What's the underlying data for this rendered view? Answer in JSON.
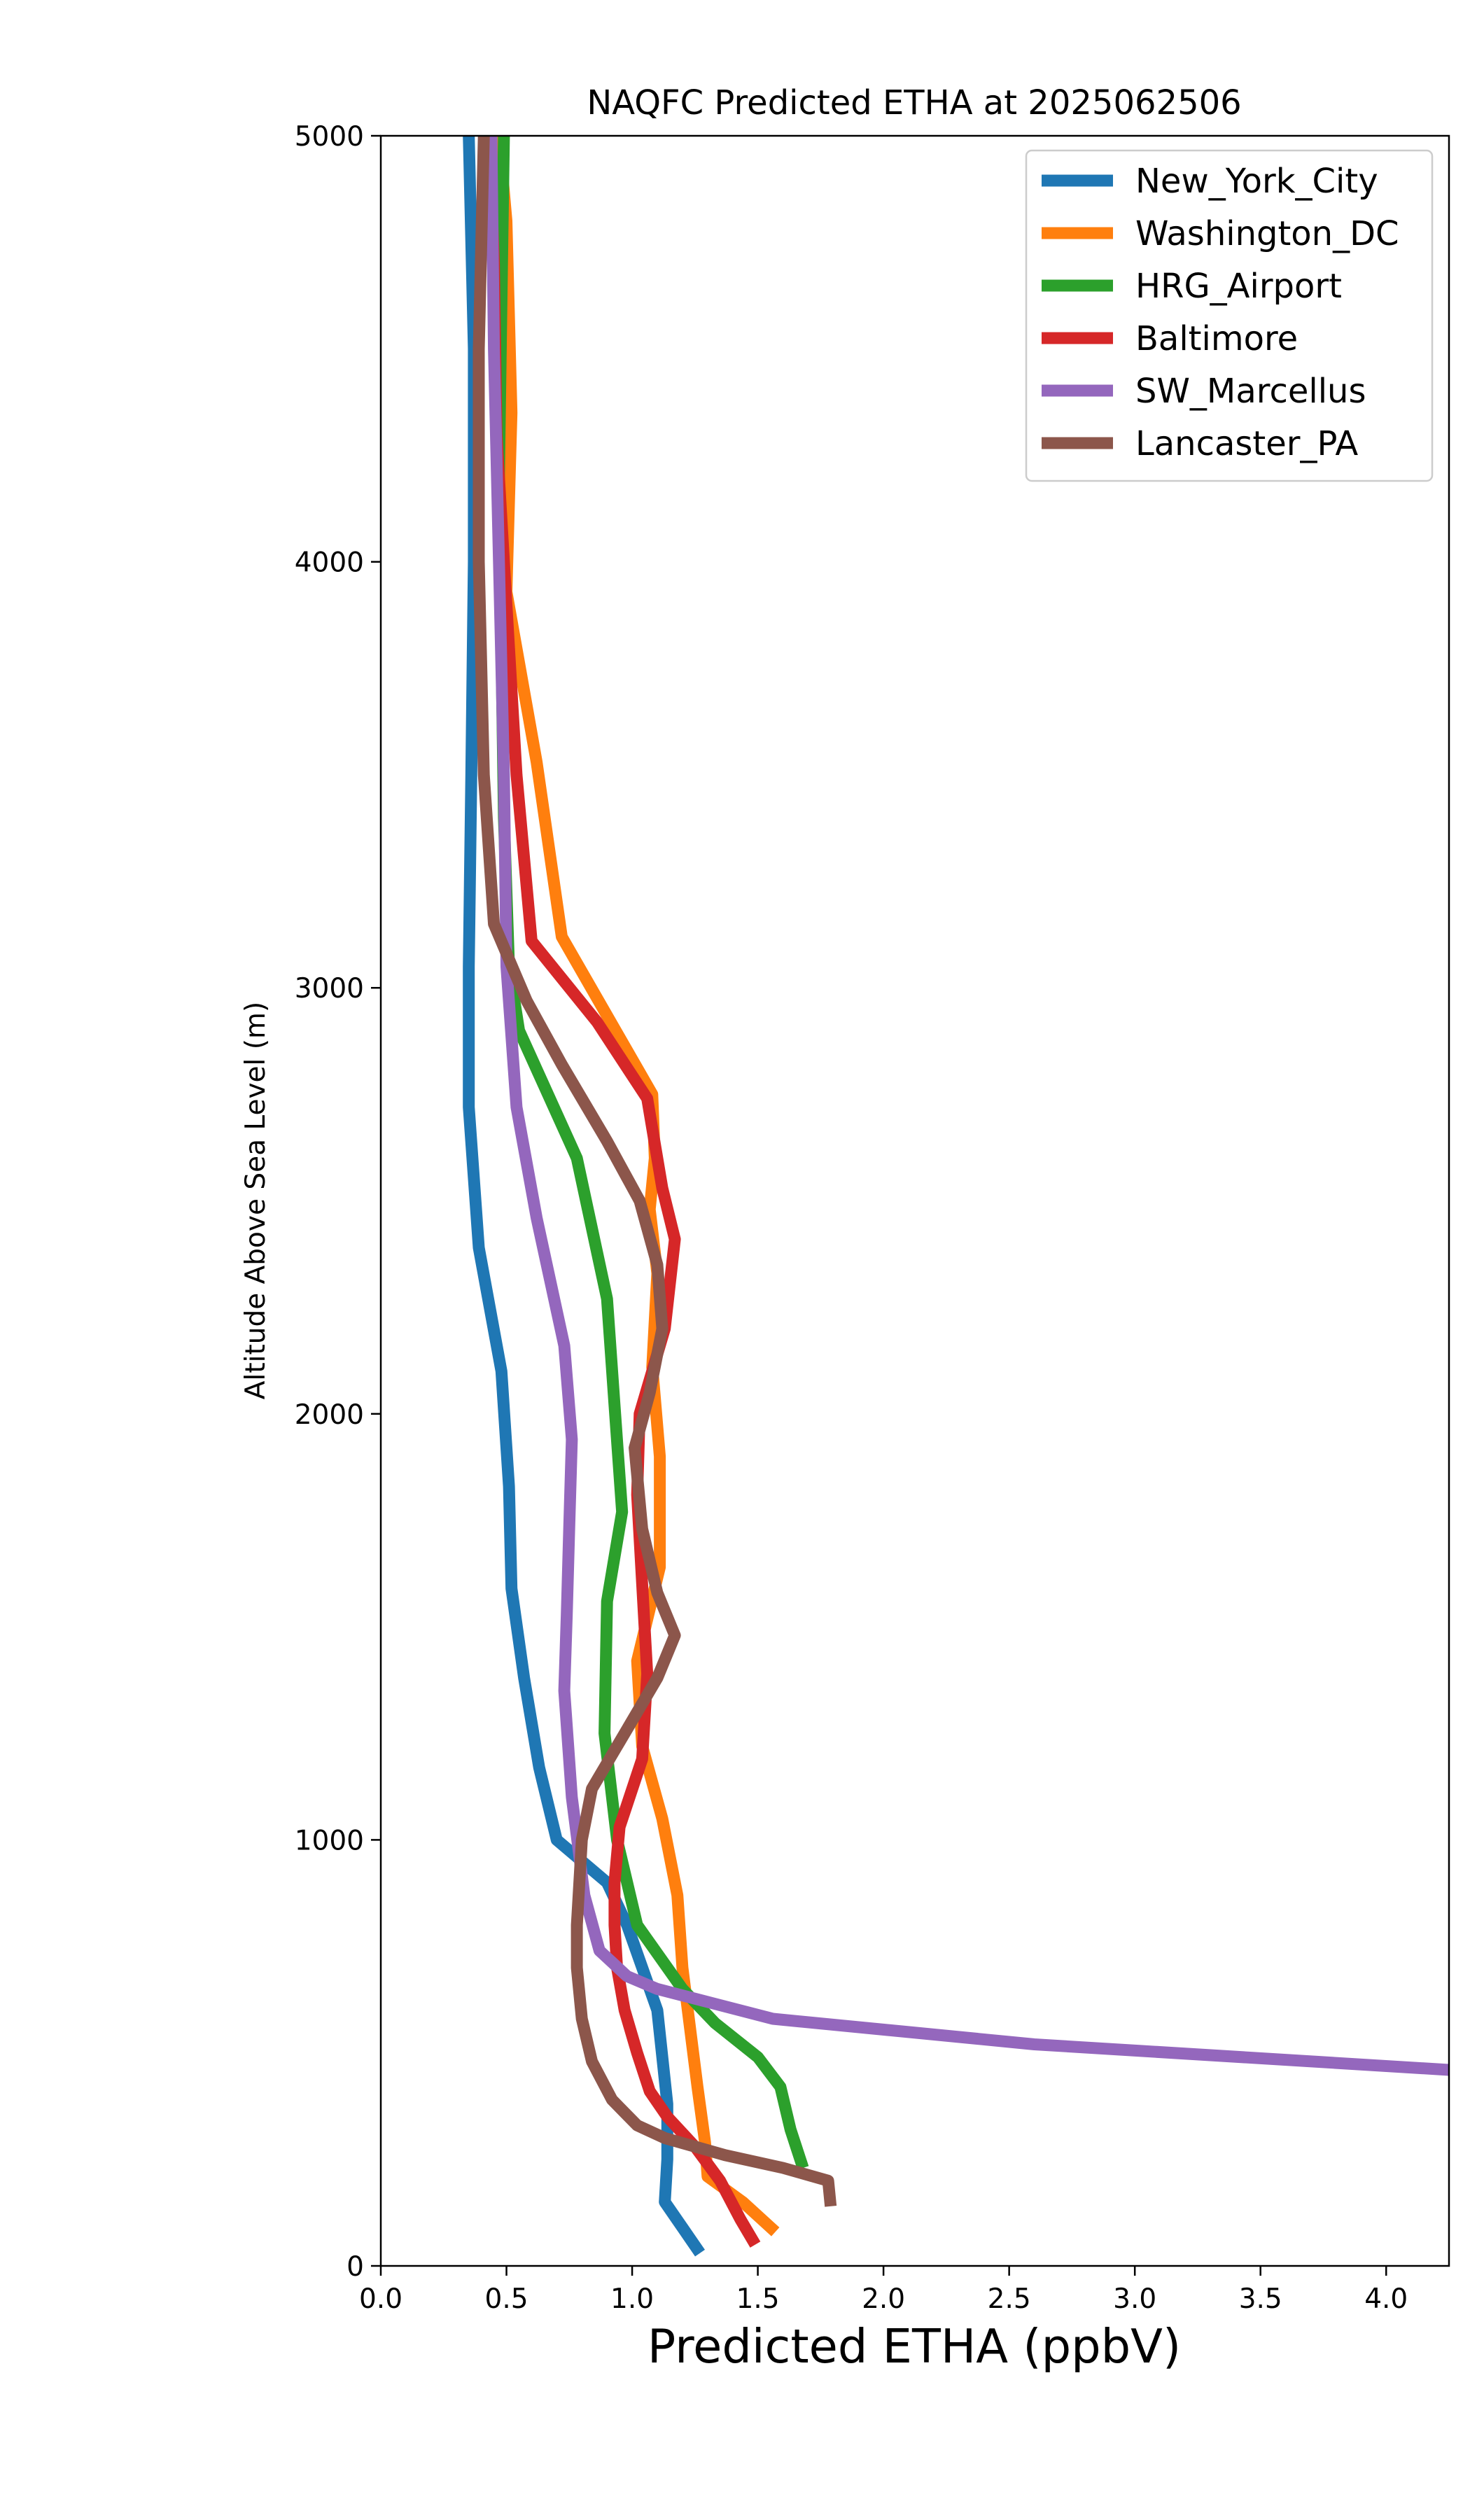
{
  "chart_data": {
    "type": "line",
    "title": "NAQFC Predicted ETHA at 2025062506",
    "xlabel": "Predicted ETHA (ppbV)",
    "ylabel": "Altitude Above Sea Level (m)",
    "xlim": [
      0,
      4.25
    ],
    "ylim": [
      0,
      5000
    ],
    "xticks": [
      0.0,
      0.5,
      1.0,
      1.5,
      2.0,
      2.5,
      3.0,
      3.5,
      4.0
    ],
    "xtick_labels": [
      "0.0",
      "0.5",
      "1.0",
      "1.5",
      "2.0",
      "2.5",
      "3.0",
      "3.5",
      "4.0"
    ],
    "yticks": [
      0,
      1000,
      2000,
      3000,
      4000,
      5000
    ],
    "ytick_labels": [
      "0",
      "1000",
      "2000",
      "3000",
      "4000",
      "5000"
    ],
    "grid": false,
    "legend_position": "top-right",
    "series": [
      {
        "name": "New_York_City",
        "color": "#1f77b4",
        "points": [
          [
            1.27,
            30
          ],
          [
            1.2,
            90
          ],
          [
            1.13,
            150
          ],
          [
            1.14,
            250
          ],
          [
            1.14,
            380
          ],
          [
            1.1,
            600
          ],
          [
            0.98,
            800
          ],
          [
            0.9,
            900
          ],
          [
            0.7,
            1000
          ],
          [
            0.63,
            1170
          ],
          [
            0.57,
            1380
          ],
          [
            0.52,
            1590
          ],
          [
            0.51,
            1830
          ],
          [
            0.48,
            2100
          ],
          [
            0.39,
            2390
          ],
          [
            0.35,
            2720
          ],
          [
            0.35,
            3050
          ],
          [
            0.36,
            3500
          ],
          [
            0.37,
            4000
          ],
          [
            0.37,
            4500
          ],
          [
            0.35,
            5000
          ]
        ]
      },
      {
        "name": "Washington_DC",
        "color": "#ff7f0e",
        "points": [
          [
            1.57,
            80
          ],
          [
            1.44,
            150
          ],
          [
            1.3,
            210
          ],
          [
            1.29,
            290
          ],
          [
            1.26,
            420
          ],
          [
            1.2,
            700
          ],
          [
            1.18,
            870
          ],
          [
            1.12,
            1050
          ],
          [
            1.04,
            1220
          ],
          [
            1.02,
            1420
          ],
          [
            1.11,
            1640
          ],
          [
            1.11,
            1900
          ],
          [
            1.08,
            2110
          ],
          [
            1.1,
            2330
          ],
          [
            1.07,
            2480
          ],
          [
            1.09,
            2600
          ],
          [
            1.08,
            2750
          ],
          [
            0.72,
            3120
          ],
          [
            0.62,
            3530
          ],
          [
            0.5,
            3930
          ],
          [
            0.52,
            4350
          ],
          [
            0.5,
            4800
          ],
          [
            0.47,
            5000
          ]
        ]
      },
      {
        "name": "HRG_Airport",
        "color": "#2ca02c",
        "points": [
          [
            1.68,
            230
          ],
          [
            1.63,
            320
          ],
          [
            1.59,
            420
          ],
          [
            1.5,
            490
          ],
          [
            1.33,
            570
          ],
          [
            1.2,
            650
          ],
          [
            1.02,
            800
          ],
          [
            0.94,
            1000
          ],
          [
            0.89,
            1250
          ],
          [
            0.9,
            1560
          ],
          [
            0.96,
            1770
          ],
          [
            0.93,
            2020
          ],
          [
            0.9,
            2270
          ],
          [
            0.78,
            2600
          ],
          [
            0.55,
            2900
          ],
          [
            0.51,
            3050
          ],
          [
            0.49,
            3400
          ],
          [
            0.48,
            3800
          ],
          [
            0.47,
            4200
          ],
          [
            0.48,
            4600
          ],
          [
            0.49,
            5000
          ]
        ]
      },
      {
        "name": "Baltimore",
        "color": "#d62728",
        "points": [
          [
            1.49,
            50
          ],
          [
            1.43,
            110
          ],
          [
            1.35,
            200
          ],
          [
            1.25,
            280
          ],
          [
            1.14,
            350
          ],
          [
            1.07,
            410
          ],
          [
            1.02,
            500
          ],
          [
            0.97,
            600
          ],
          [
            0.94,
            700
          ],
          [
            0.93,
            800
          ],
          [
            0.93,
            900
          ],
          [
            0.95,
            1030
          ],
          [
            1.04,
            1190
          ],
          [
            1.06,
            1390
          ],
          [
            1.04,
            1600
          ],
          [
            1.02,
            1810
          ],
          [
            1.03,
            2000
          ],
          [
            1.13,
            2200
          ],
          [
            1.17,
            2410
          ],
          [
            1.12,
            2530
          ],
          [
            1.06,
            2740
          ],
          [
            0.86,
            2920
          ],
          [
            0.6,
            3110
          ],
          [
            0.54,
            3500
          ],
          [
            0.5,
            3900
          ],
          [
            0.46,
            4300
          ],
          [
            0.45,
            4700
          ],
          [
            0.43,
            5000
          ]
        ]
      },
      {
        "name": "SW_Marcellus",
        "color": "#9467bd",
        "points": [
          [
            4.25,
            460
          ],
          [
            2.6,
            520
          ],
          [
            1.56,
            580
          ],
          [
            1.1,
            650
          ],
          [
            0.98,
            680
          ],
          [
            0.87,
            740
          ],
          [
            0.81,
            870
          ],
          [
            0.76,
            1100
          ],
          [
            0.73,
            1350
          ],
          [
            0.74,
            1530
          ],
          [
            0.75,
            1740
          ],
          [
            0.76,
            1940
          ],
          [
            0.73,
            2160
          ],
          [
            0.62,
            2460
          ],
          [
            0.54,
            2720
          ],
          [
            0.5,
            3050
          ],
          [
            0.49,
            3500
          ],
          [
            0.47,
            4000
          ],
          [
            0.45,
            4500
          ],
          [
            0.44,
            5000
          ]
        ]
      },
      {
        "name": "Lancaster_PA",
        "color": "#8c564b",
        "points": [
          [
            1.79,
            140
          ],
          [
            1.78,
            200
          ],
          [
            1.6,
            230
          ],
          [
            1.37,
            260
          ],
          [
            1.13,
            300
          ],
          [
            1.02,
            330
          ],
          [
            0.92,
            390
          ],
          [
            0.84,
            480
          ],
          [
            0.8,
            580
          ],
          [
            0.78,
            700
          ],
          [
            0.78,
            800
          ],
          [
            0.8,
            1000
          ],
          [
            0.84,
            1120
          ],
          [
            1.0,
            1280
          ],
          [
            1.1,
            1380
          ],
          [
            1.17,
            1480
          ],
          [
            1.1,
            1580
          ],
          [
            1.04,
            1730
          ],
          [
            1.01,
            1920
          ],
          [
            1.07,
            2050
          ],
          [
            1.12,
            2200
          ],
          [
            1.1,
            2350
          ],
          [
            1.03,
            2500
          ],
          [
            0.9,
            2640
          ],
          [
            0.72,
            2820
          ],
          [
            0.58,
            2970
          ],
          [
            0.45,
            3150
          ],
          [
            0.41,
            3500
          ],
          [
            0.39,
            4000
          ],
          [
            0.39,
            4500
          ],
          [
            0.41,
            5000
          ]
        ]
      }
    ]
  }
}
